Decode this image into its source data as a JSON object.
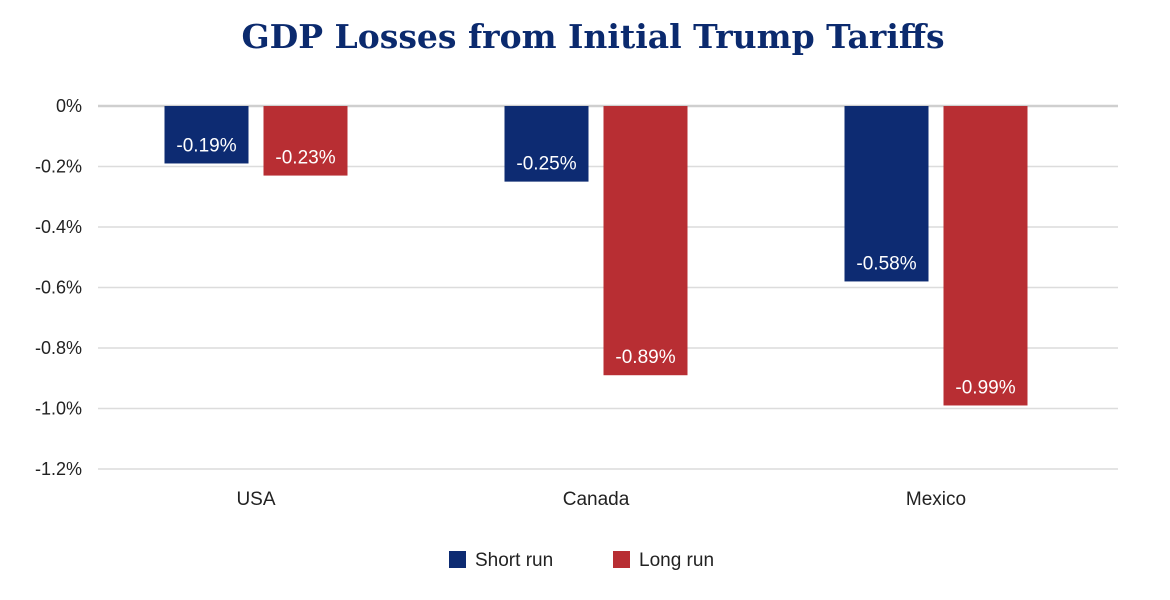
{
  "chart_data": {
    "type": "bar",
    "title": "GDP Losses from Initial Trump Tariffs",
    "xlabel": "",
    "ylabel": "",
    "categories": [
      "USA",
      "Canada",
      "Mexico"
    ],
    "series": [
      {
        "name": "Short run",
        "color": "#0d2b72",
        "values": [
          -0.19,
          -0.25,
          -0.58
        ],
        "labels": [
          "-0.19%",
          "-0.25%",
          "-0.58%"
        ]
      },
      {
        "name": "Long run",
        "color": "#b82e33",
        "values": [
          -0.23,
          -0.89,
          -0.99
        ],
        "labels": [
          "-0.23%",
          "-0.89%",
          "-0.99%"
        ]
      }
    ],
    "ylim": [
      -1.2,
      0
    ],
    "yticks": [
      0,
      -0.2,
      -0.4,
      -0.6,
      -0.8,
      -1.0,
      -1.2
    ],
    "ytick_labels": [
      "0%",
      "-0.2%",
      "-0.4%",
      "-0.6%",
      "-0.8%",
      "-1.0%",
      "-1.2%"
    ],
    "grid": true,
    "legend": "bottom-center"
  }
}
